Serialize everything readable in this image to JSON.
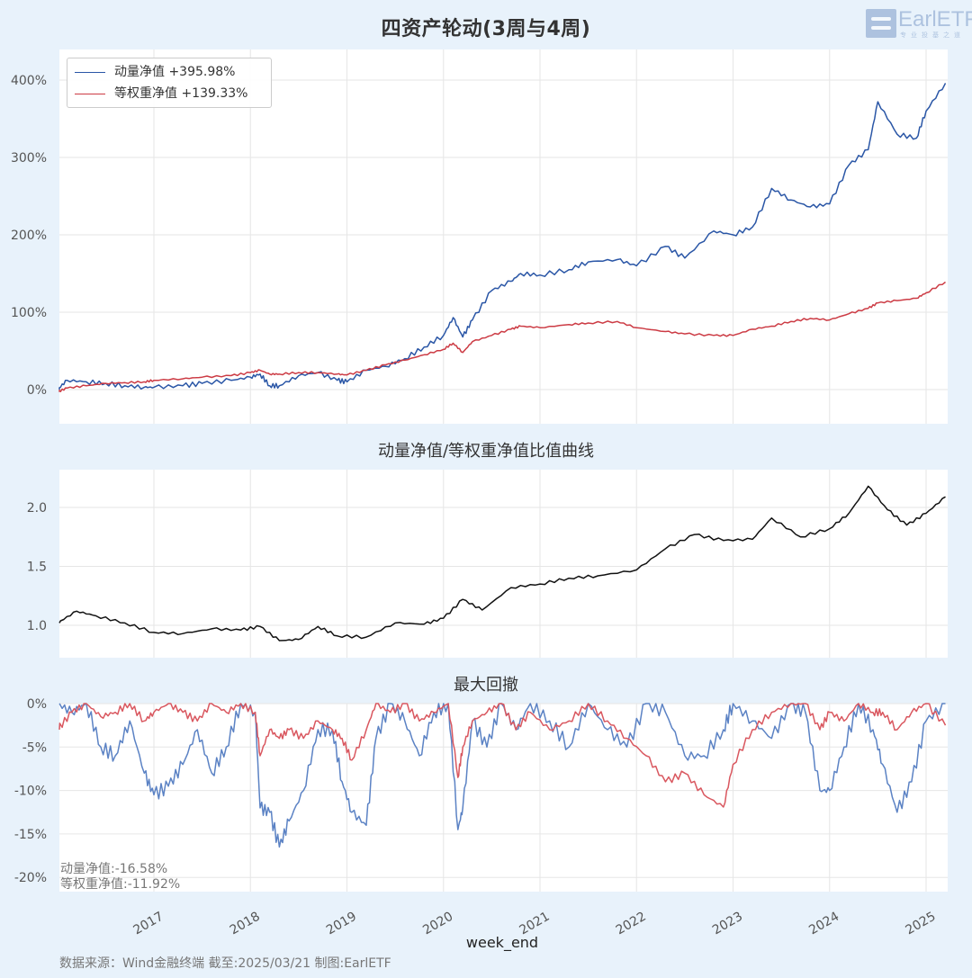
{
  "title": "四资产轮动(3周与4周)",
  "logo": {
    "text": "EarlETF",
    "subtitle": "专业投基之道"
  },
  "colors": {
    "momentum": "#2a56a6",
    "equal_weight": "#cc3b44",
    "ratio": "#111111",
    "momentum_dd": "#5b82c4",
    "equal_weight_dd": "#d9575f",
    "background": "#e8f2fb",
    "grid": "#e8e8e8"
  },
  "legend": {
    "items": [
      {
        "label": "动量净值  +395.98%",
        "color": "#2a56a6"
      },
      {
        "label": "等权重净值  +139.33%",
        "color": "#cc3b44"
      }
    ]
  },
  "panels": {
    "ratio_title": "动量净值/等权重净值比值曲线",
    "drawdown_title": "最大回撤",
    "drawdown_annotations": [
      "动量净值:-16.58%",
      "等权重净值:-11.92%"
    ]
  },
  "x_axis": {
    "label": "week_end",
    "ticks": [
      "2017",
      "2018",
      "2019",
      "2020",
      "2021",
      "2022",
      "2023",
      "2024",
      "2025"
    ]
  },
  "footer": "数据来源：Wind金融终端 截至:2025/03/21 制图:EarlETF",
  "chart_data": [
    {
      "type": "line",
      "title": "四资产轮动(3周与4周)",
      "xlabel": "week_end",
      "ylabel": "",
      "x_ticks": [
        "2017",
        "2018",
        "2019",
        "2020",
        "2021",
        "2022",
        "2023",
        "2024",
        "2025"
      ],
      "yticks": [
        "0%",
        "100%",
        "200%",
        "300%",
        "400%"
      ],
      "ylim": [
        -40,
        440
      ],
      "legend_position": "upper left",
      "grid": true,
      "x": [
        2016.0,
        2016.1,
        2016.3,
        2016.5,
        2016.7,
        2016.9,
        2017.0,
        2017.3,
        2017.5,
        2017.8,
        2018.0,
        2018.1,
        2018.2,
        2018.3,
        2018.5,
        2018.7,
        2018.9,
        2019.0,
        2019.2,
        2019.4,
        2019.6,
        2019.8,
        2020.0,
        2020.1,
        2020.2,
        2020.3,
        2020.5,
        2020.7,
        2020.8,
        2021.0,
        2021.3,
        2021.5,
        2021.8,
        2022.0,
        2022.3,
        2022.5,
        2022.8,
        2023.0,
        2023.2,
        2023.4,
        2023.6,
        2023.8,
        2024.0,
        2024.2,
        2024.4,
        2024.5,
        2024.7,
        2024.9,
        2025.0,
        2025.2
      ],
      "series": [
        {
          "name": "动量净值",
          "final_label": "+395.98%",
          "values": [
            0,
            12,
            10,
            8,
            5,
            3,
            3,
            5,
            8,
            12,
            16,
            20,
            5,
            5,
            18,
            22,
            12,
            10,
            25,
            30,
            40,
            55,
            70,
            93,
            68,
            90,
            128,
            140,
            150,
            148,
            155,
            165,
            168,
            160,
            185,
            170,
            205,
            200,
            210,
            260,
            245,
            236,
            240,
            290,
            310,
            372,
            330,
            325,
            360,
            396
          ]
        },
        {
          "name": "等权重净值",
          "final_label": "+139.33%",
          "values": [
            -3,
            2,
            5,
            8,
            9,
            10,
            12,
            14,
            16,
            18,
            22,
            25,
            20,
            20,
            22,
            22,
            20,
            19,
            25,
            32,
            38,
            45,
            52,
            60,
            48,
            62,
            70,
            78,
            82,
            80,
            84,
            86,
            88,
            80,
            75,
            72,
            70,
            70,
            78,
            82,
            88,
            92,
            90,
            98,
            105,
            112,
            115,
            118,
            125,
            139
          ]
        }
      ]
    },
    {
      "type": "line",
      "title": "动量净值/等权重净值比值曲线",
      "xlabel": "week_end",
      "yticks": [
        "1.0",
        "1.5",
        "2.0"
      ],
      "ylim": [
        0.8,
        2.3
      ],
      "grid": true,
      "x": [
        2016.0,
        2016.2,
        2016.4,
        2016.7,
        2017.0,
        2017.3,
        2017.6,
        2017.9,
        2018.1,
        2018.3,
        2018.5,
        2018.7,
        2018.9,
        2019.2,
        2019.5,
        2019.8,
        2020.0,
        2020.2,
        2020.4,
        2020.7,
        2021.0,
        2021.3,
        2021.6,
        2022.0,
        2022.3,
        2022.6,
        2022.9,
        2023.2,
        2023.4,
        2023.7,
        2024.0,
        2024.2,
        2024.4,
        2024.6,
        2024.8,
        2025.0,
        2025.2
      ],
      "series": [
        {
          "name": "比值",
          "values": [
            1.02,
            1.12,
            1.08,
            1.02,
            0.94,
            0.93,
            0.97,
            0.96,
            0.99,
            0.87,
            0.88,
            0.99,
            0.91,
            0.9,
            1.02,
            1.01,
            1.06,
            1.22,
            1.13,
            1.32,
            1.35,
            1.4,
            1.42,
            1.47,
            1.65,
            1.77,
            1.72,
            1.73,
            1.91,
            1.75,
            1.82,
            1.95,
            2.18,
            1.98,
            1.85,
            1.95,
            2.09
          ]
        }
      ]
    },
    {
      "type": "line",
      "title": "最大回撤",
      "xlabel": "week_end",
      "yticks": [
        "0%",
        "-5%",
        "-10%",
        "-15%",
        "-20%"
      ],
      "ylim": [
        -21.5,
        0
      ],
      "grid": true,
      "annotations": [
        "动量净值:-16.58%",
        "等权重净值:-11.92%"
      ],
      "x": [
        2016.0,
        2016.15,
        2016.3,
        2016.45,
        2016.6,
        2016.75,
        2016.9,
        2017.0,
        2017.15,
        2017.3,
        2017.45,
        2017.6,
        2017.75,
        2017.9,
        2018.05,
        2018.1,
        2018.2,
        2018.3,
        2018.4,
        2018.55,
        2018.7,
        2018.85,
        2018.95,
        2019.05,
        2019.2,
        2019.3,
        2019.45,
        2019.6,
        2019.75,
        2019.9,
        2020.05,
        2020.15,
        2020.2,
        2020.3,
        2020.45,
        2020.6,
        2020.75,
        2020.9,
        2021.1,
        2021.3,
        2021.5,
        2021.7,
        2021.9,
        2022.1,
        2022.3,
        2022.5,
        2022.7,
        2022.9,
        2023.0,
        2023.2,
        2023.4,
        2023.6,
        2023.75,
        2023.9,
        2024.0,
        2024.15,
        2024.3,
        2024.45,
        2024.55,
        2024.7,
        2024.85,
        2025.0,
        2025.2
      ],
      "series": [
        {
          "name": "动量净值",
          "values": [
            0,
            -1,
            0,
            -5,
            -6,
            -2,
            -8,
            -10.5,
            -9.5,
            -7,
            -3,
            -8,
            -5,
            0,
            -1,
            -12,
            -12.5,
            -16.5,
            -13.5,
            -10,
            -3,
            -3,
            -9,
            -12.5,
            -14,
            -4,
            0,
            -2,
            -6,
            -1,
            0,
            -14.5,
            -12,
            -2,
            -5,
            0,
            -3,
            0,
            -2,
            -5,
            0,
            -3,
            -5,
            0,
            -1,
            -6,
            -6,
            -3,
            0,
            -2,
            -4,
            0,
            -1,
            -10,
            -10,
            -5,
            0,
            -3,
            -7,
            -12.5,
            -9,
            -2,
            0
          ]
        },
        {
          "name": "等权重净值",
          "values": [
            -3,
            -1,
            0,
            -1.5,
            -1,
            0,
            -2,
            -1,
            0,
            -1,
            -2,
            0,
            -1,
            0,
            -1,
            -6,
            -3,
            -4,
            -3,
            -4,
            -2,
            -3,
            -4,
            -6.5,
            -3,
            0,
            -1,
            0,
            -2,
            -1,
            0,
            -8.5,
            -5,
            -2,
            -1,
            0,
            -3,
            -1,
            -3,
            -2,
            0,
            -2,
            -4,
            -6,
            -9,
            -8,
            -10.5,
            -11.9,
            -7,
            -3,
            -1,
            0,
            0,
            -3,
            -1,
            -2,
            0,
            -1,
            -1,
            -3,
            -1,
            0,
            -2.5
          ]
        }
      ]
    }
  ]
}
